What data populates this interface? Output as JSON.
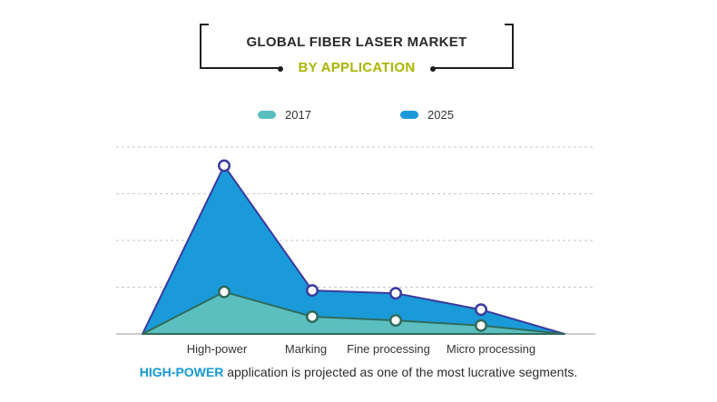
{
  "colors": {
    "series_2017": "#5bbfbf",
    "series_2025": "#1a9ad9",
    "line_2025": "#3a3a9e",
    "line_2017": "#2f6b5c",
    "title_accent": "#a9b400",
    "caption_accent": "#1598d3"
  },
  "chart_data": {
    "type": "area",
    "title": "GLOBAL FIBER LASER MARKET",
    "subtitle": "BY APPLICATION",
    "categories": [
      "High-power",
      "Marking",
      "Fine processing",
      "Micro processing"
    ],
    "series": [
      {
        "name": "2017",
        "values": [
          0.9,
          0.37,
          0.29,
          0.18
        ]
      },
      {
        "name": "2025",
        "values": [
          3.6,
          0.93,
          0.87,
          0.52
        ]
      }
    ],
    "ylim": [
      0,
      4
    ],
    "gridlines": 4,
    "legend": "top-center",
    "grid": true
  },
  "caption": {
    "highlight": "HIGH-POWER",
    "text": " application is projected as one of the most lucrative segments."
  }
}
